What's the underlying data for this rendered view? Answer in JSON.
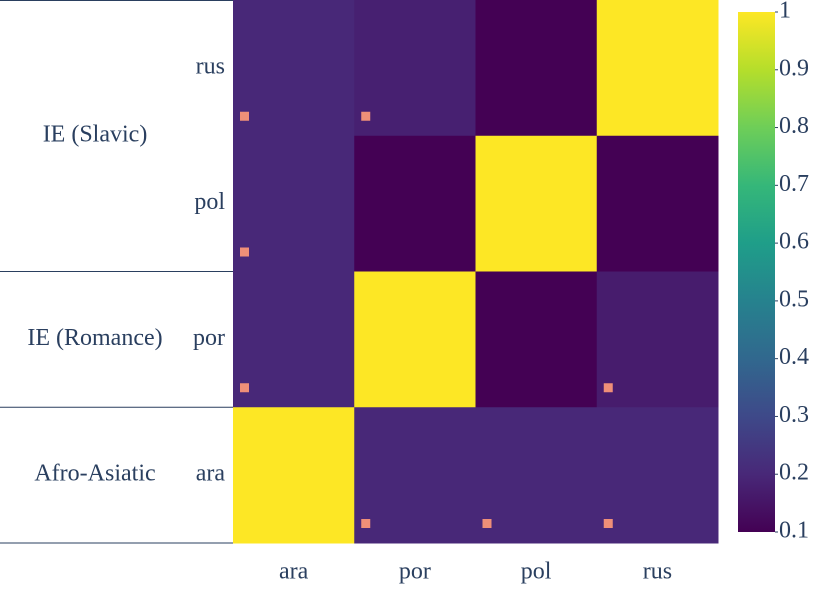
{
  "chart_data": {
    "type": "heatmap",
    "x": [
      "ara",
      "por",
      "pol",
      "rus"
    ],
    "y": [
      "rus",
      "pol",
      "por",
      "ara"
    ],
    "values": [
      [
        0.2,
        0.18,
        0.1,
        1
      ],
      [
        0.2,
        0.1,
        1,
        0.1
      ],
      [
        0.2,
        1,
        0.1,
        0.17
      ],
      [
        1,
        0.2,
        0.2,
        0.2
      ]
    ],
    "markers": [
      [
        true,
        true,
        false,
        false
      ],
      [
        true,
        false,
        false,
        false
      ],
      [
        true,
        false,
        false,
        true
      ],
      [
        false,
        true,
        true,
        true
      ]
    ],
    "marker_color": "#ef8f78",
    "groups": [
      {
        "name": "IE (Slavic)",
        "categories": [
          "rus",
          "pol"
        ]
      },
      {
        "name": "IE (Romance)",
        "categories": [
          "por"
        ]
      },
      {
        "name": "Afro-Asiatic",
        "categories": [
          "ara"
        ]
      }
    ],
    "colorscale": [
      "#440154",
      "#482878",
      "#3e4989",
      "#31688e",
      "#26828e",
      "#1f9e89",
      "#35b779",
      "#6ece58",
      "#b5de2b",
      "#fde725"
    ],
    "zlim": [
      0.1,
      1
    ],
    "zticks": [
      0.1,
      0.2,
      0.3,
      0.4,
      0.5,
      0.6,
      0.7,
      0.8,
      0.9,
      1
    ]
  }
}
